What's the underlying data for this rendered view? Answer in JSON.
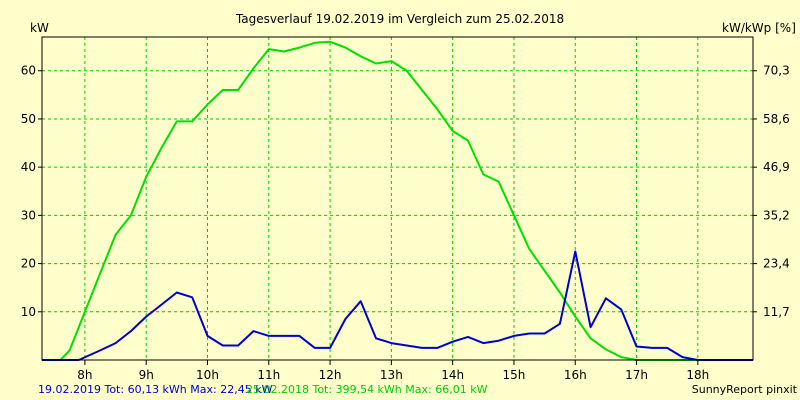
{
  "chart_data": {
    "type": "line",
    "title": "Tagesverlauf 19.02.2019 im Vergleich zum 25.02.2018",
    "ylabel_left": "kW",
    "ylabel_right": "kW/kWp [%]",
    "x_ticks": [
      "8h",
      "9h",
      "10h",
      "11h",
      "12h",
      "13h",
      "14h",
      "15h",
      "16h",
      "17h",
      "18h"
    ],
    "x_tick_hours": [
      8,
      9,
      10,
      11,
      12,
      13,
      14,
      15,
      16,
      17,
      18
    ],
    "xlim": [
      7.3,
      18.9
    ],
    "y_ticks_left": [
      10,
      20,
      30,
      40,
      50,
      60
    ],
    "y_ticks_right": [
      "11,7",
      "23,4",
      "35,2",
      "46,9",
      "58,6",
      "70,3"
    ],
    "ylim": [
      0,
      67
    ],
    "grid": true,
    "series": [
      {
        "name": "25.02.2018",
        "color": "#00e000",
        "x": [
          7.3,
          7.6,
          7.75,
          8.0,
          8.25,
          8.5,
          8.75,
          9.0,
          9.25,
          9.5,
          9.75,
          10.0,
          10.25,
          10.5,
          10.75,
          11.0,
          11.25,
          11.5,
          11.75,
          12.0,
          12.25,
          12.5,
          12.75,
          13.0,
          13.25,
          13.5,
          13.75,
          14.0,
          14.25,
          14.5,
          14.75,
          15.0,
          15.25,
          15.5,
          15.75,
          16.0,
          16.25,
          16.5,
          16.75,
          17.0,
          17.25,
          17.5,
          17.75,
          18.0,
          18.5,
          18.9
        ],
        "y": [
          0,
          0,
          2,
          10,
          18,
          26,
          30,
          38,
          44,
          49.5,
          49.5,
          53,
          56,
          56,
          60.5,
          64.5,
          64,
          64.8,
          65.8,
          66,
          64.8,
          63,
          61.5,
          62,
          60,
          56,
          52,
          47.5,
          45.5,
          38.5,
          37,
          30,
          23,
          18.5,
          14,
          9,
          4.5,
          2.2,
          0.6,
          0,
          0,
          0,
          0,
          0,
          0,
          0
        ]
      },
      {
        "name": "19.02.2019",
        "color": "#0000cc",
        "x": [
          7.3,
          7.9,
          8.25,
          8.5,
          8.75,
          9.0,
          9.25,
          9.5,
          9.75,
          10.0,
          10.25,
          10.5,
          10.75,
          11.0,
          11.25,
          11.5,
          11.75,
          12.0,
          12.25,
          12.5,
          12.75,
          13.0,
          13.25,
          13.5,
          13.75,
          14.0,
          14.25,
          14.5,
          14.75,
          15.0,
          15.25,
          15.5,
          15.75,
          16.0,
          16.25,
          16.5,
          16.75,
          17.0,
          17.25,
          17.5,
          17.75,
          18.0,
          18.5,
          18.9
        ],
        "y": [
          0,
          0,
          2,
          3.5,
          6,
          9,
          11.5,
          14,
          13,
          5,
          3,
          3,
          6,
          5,
          5,
          5,
          2.5,
          2.5,
          8.5,
          12.2,
          4.5,
          3.5,
          3,
          2.5,
          2.5,
          3.8,
          4.8,
          3.5,
          4,
          5,
          5.5,
          5.5,
          7.5,
          22.5,
          6.8,
          12.8,
          10.5,
          2.8,
          2.5,
          2.5,
          0.6,
          0,
          0,
          0
        ]
      }
    ],
    "footer": {
      "series_2019": "19.02.2019 Tot: 60,13 kWh Max: 22,45 kW",
      "series_2018": "25.02.2018 Tot: 399,54 kWh Max: 66,01 kW",
      "credit": "SunnyReport pinxit"
    }
  }
}
